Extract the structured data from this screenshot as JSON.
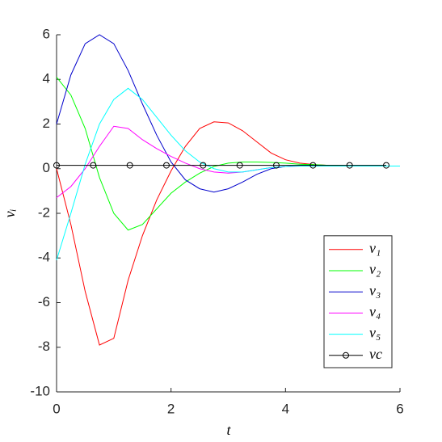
{
  "chart_data": {
    "type": "line",
    "xlabel": "t",
    "ylabel": "vᵢ",
    "x": [
      0,
      0.25,
      0.5,
      0.75,
      1.0,
      1.25,
      1.5,
      1.75,
      2.0,
      2.25,
      2.5,
      2.75,
      3.0,
      3.25,
      3.5,
      3.75,
      4.0,
      4.25,
      4.5,
      4.75,
      5.0,
      5.25,
      5.5,
      5.75,
      6.0
    ],
    "series": [
      {
        "name": "v₁",
        "color": "#ff0000",
        "values": [
          0,
          -2.5,
          -5.5,
          -7.9,
          -7.6,
          -5.0,
          -3.0,
          -1.4,
          -0.1,
          1.0,
          1.8,
          2.1,
          2.05,
          1.7,
          1.2,
          0.7,
          0.4,
          0.25,
          0.18,
          0.15,
          0.14,
          0.13,
          0.12,
          0.12,
          0.12
        ]
      },
      {
        "name": "v₂",
        "color": "#00ff00",
        "values": [
          4.1,
          3.3,
          1.8,
          -0.4,
          -2.0,
          -2.75,
          -2.5,
          -1.8,
          -1.1,
          -0.6,
          -0.2,
          0.1,
          0.25,
          0.3,
          0.3,
          0.28,
          0.25,
          0.2,
          0.18,
          0.15,
          0.14,
          0.13,
          0.12,
          0.12,
          0.12
        ]
      },
      {
        "name": "v₃",
        "color": "#0000cc",
        "values": [
          2.0,
          4.2,
          5.6,
          6.0,
          5.6,
          4.4,
          2.9,
          1.5,
          0.3,
          -0.5,
          -0.9,
          -1.05,
          -0.9,
          -0.6,
          -0.25,
          0.0,
          0.1,
          0.15,
          0.15,
          0.13,
          0.12,
          0.12,
          0.12,
          0.12,
          0.12
        ]
      },
      {
        "name": "v₄",
        "color": "#ff00ff",
        "values": [
          -1.3,
          -0.8,
          0.0,
          1.0,
          1.9,
          1.8,
          1.3,
          0.9,
          0.55,
          0.25,
          0.0,
          -0.15,
          -0.2,
          -0.15,
          -0.05,
          0.05,
          0.1,
          0.12,
          0.12,
          0.12,
          0.12,
          0.12,
          0.12,
          0.12,
          0.12
        ]
      },
      {
        "name": "v₅",
        "color": "#00ffff",
        "values": [
          -4.1,
          -2.0,
          0.2,
          2.0,
          3.1,
          3.6,
          3.1,
          2.3,
          1.5,
          0.8,
          0.3,
          0.0,
          -0.15,
          -0.15,
          -0.05,
          0.05,
          0.1,
          0.12,
          0.12,
          0.12,
          0.12,
          0.12,
          0.12,
          0.12,
          0.12
        ]
      },
      {
        "name": "vc",
        "color": "#000000",
        "marker": "circle",
        "x": [
          0,
          0.64,
          1.28,
          1.92,
          2.56,
          3.2,
          3.84,
          4.48,
          5.12,
          5.76
        ],
        "values": [
          0.15,
          0.15,
          0.15,
          0.15,
          0.15,
          0.15,
          0.15,
          0.15,
          0.15,
          0.15
        ]
      }
    ],
    "xlim": [
      0,
      6
    ],
    "xticks": [
      0,
      2,
      4,
      6
    ],
    "ylim": [
      -10,
      6
    ],
    "yticks": [
      -10,
      -8,
      -6,
      -4,
      -2,
      0,
      2,
      4,
      6
    ],
    "grid": false,
    "legend": "southeast"
  }
}
